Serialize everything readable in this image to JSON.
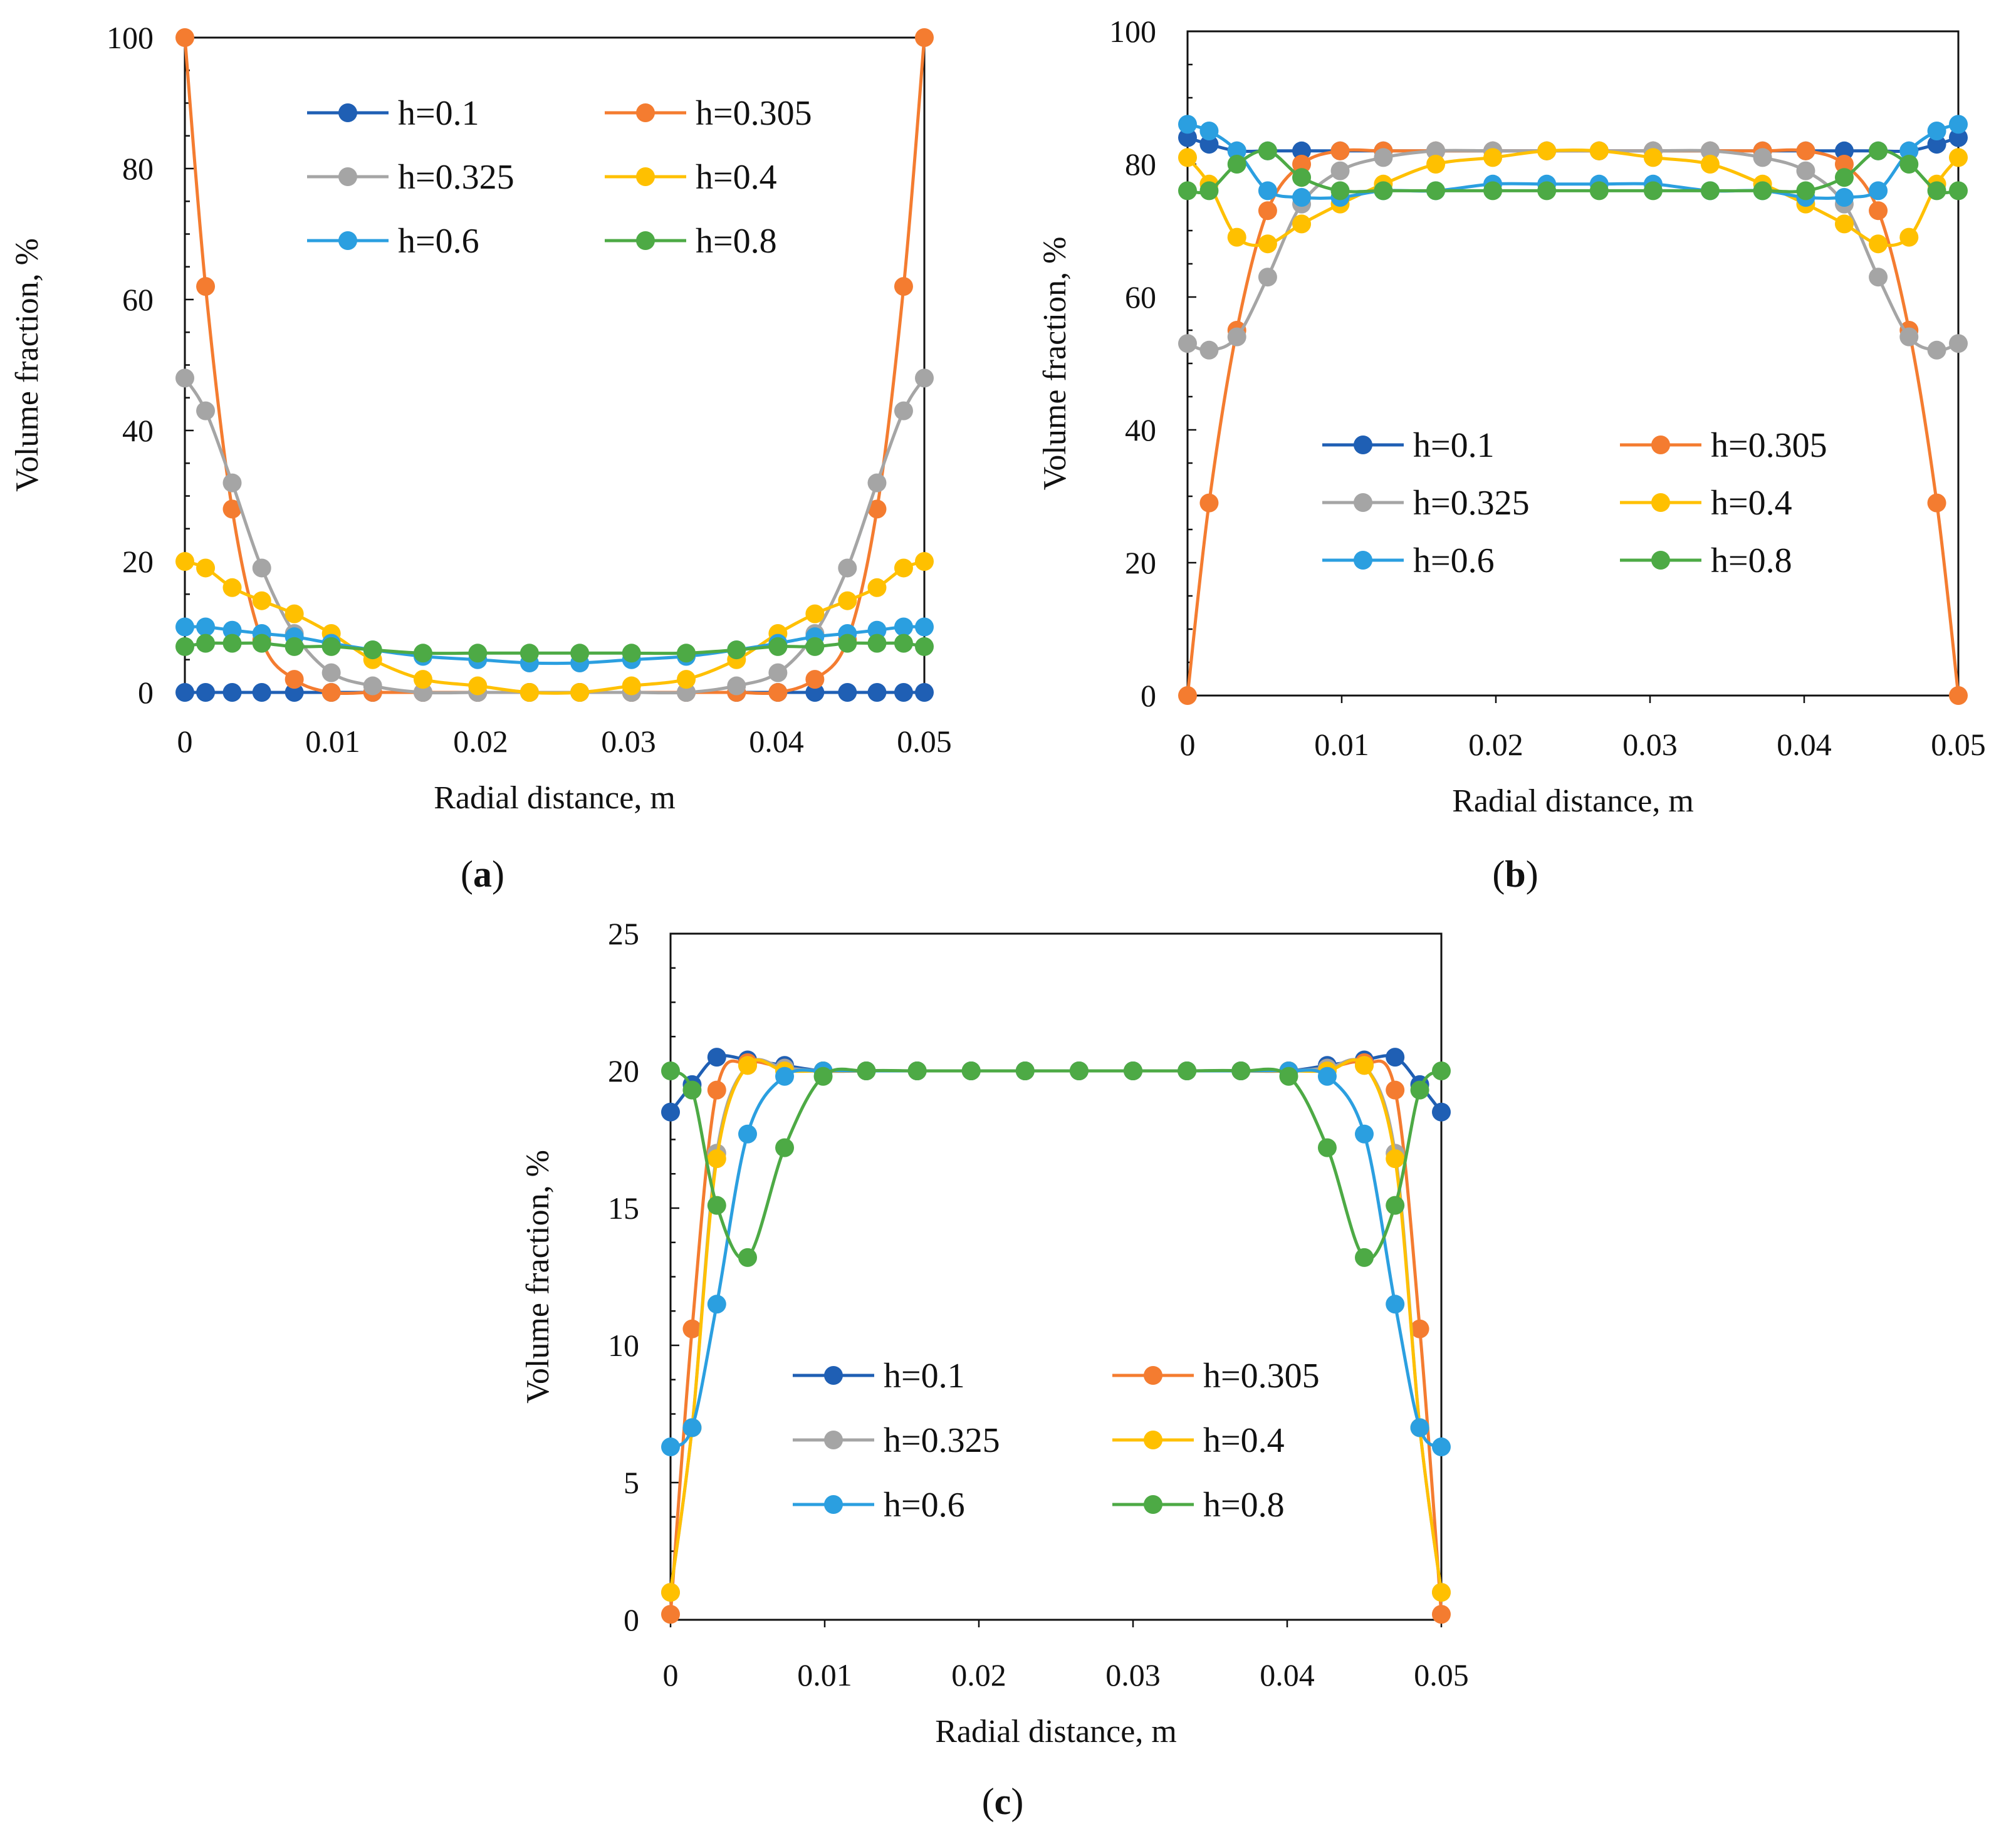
{
  "figure": {
    "panel_labels": [
      "(a)",
      "(b)",
      "(c)"
    ]
  },
  "chart_data": [
    {
      "type": "line",
      "panel": "(a)",
      "xlabel": "Radial distance, m",
      "ylabel": "Volume fraction,  %",
      "xlim": [
        0,
        0.05
      ],
      "ylim": [
        0,
        100
      ],
      "xticks": [
        "0",
        "0.01",
        "0.02",
        "0.03",
        "0.04",
        "0.05"
      ],
      "yticks": [
        "0",
        "20",
        "40",
        "60",
        "80",
        "100"
      ],
      "legend_location": "upper-center",
      "series": [
        {
          "name": "h=0.1",
          "color": "#1f5fb4",
          "x": [
            0,
            0.0014,
            0.0032,
            0.0052,
            0.0074,
            0.0099,
            0.0127,
            0.0161,
            0.0198,
            0.0233,
            0.0267,
            0.0302,
            0.0339,
            0.0373,
            0.0401,
            0.0426,
            0.0448,
            0.0468,
            0.0486,
            0.05
          ],
          "y": [
            0,
            0,
            0,
            0,
            0,
            0,
            0,
            0,
            0,
            0,
            0,
            0,
            0,
            0,
            0,
            0,
            0,
            0,
            0,
            0
          ]
        },
        {
          "name": "h=0.305",
          "color": "#f47c30",
          "x": [
            0,
            0.0014,
            0.0032,
            0.0052,
            0.0074,
            0.0099,
            0.0127,
            0.0161,
            0.0198,
            0.0233,
            0.0267,
            0.0302,
            0.0339,
            0.0373,
            0.0401,
            0.0426,
            0.0448,
            0.0468,
            0.0486,
            0.05
          ],
          "y": [
            100,
            62,
            28,
            8,
            2,
            0,
            0,
            0,
            0,
            0,
            0,
            0,
            0,
            0,
            0,
            2,
            8,
            28,
            62,
            100
          ]
        },
        {
          "name": "h=0.325",
          "color": "#a5a5a5",
          "x": [
            0,
            0.0014,
            0.0032,
            0.0052,
            0.0074,
            0.0099,
            0.0127,
            0.0161,
            0.0198,
            0.0233,
            0.0267,
            0.0302,
            0.0339,
            0.0373,
            0.0401,
            0.0426,
            0.0448,
            0.0468,
            0.0486,
            0.05
          ],
          "y": [
            48,
            43,
            32,
            19,
            9,
            3,
            1,
            0,
            0,
            0,
            0,
            0,
            0,
            1,
            3,
            9,
            19,
            32,
            43,
            48
          ]
        },
        {
          "name": "h=0.4",
          "color": "#ffc000",
          "x": [
            0,
            0.0014,
            0.0032,
            0.0052,
            0.0074,
            0.0099,
            0.0127,
            0.0161,
            0.0198,
            0.0233,
            0.0267,
            0.0302,
            0.0339,
            0.0373,
            0.0401,
            0.0426,
            0.0448,
            0.0468,
            0.0486,
            0.05
          ],
          "y": [
            20,
            19,
            16,
            14,
            12,
            9,
            5,
            2,
            1,
            0,
            0,
            1,
            2,
            5,
            9,
            12,
            14,
            16,
            19,
            20
          ]
        },
        {
          "name": "h=0.6",
          "color": "#2b9fe0",
          "x": [
            0,
            0.0014,
            0.0032,
            0.0052,
            0.0074,
            0.0099,
            0.0127,
            0.0161,
            0.0198,
            0.0233,
            0.0267,
            0.0302,
            0.0339,
            0.0373,
            0.0401,
            0.0426,
            0.0448,
            0.0468,
            0.0486,
            0.05
          ],
          "y": [
            10,
            10,
            9.5,
            9,
            8.5,
            7.5,
            6.5,
            5.5,
            5,
            4.5,
            4.5,
            5,
            5.5,
            6.5,
            7.5,
            8.5,
            9,
            9.5,
            10,
            10
          ]
        },
        {
          "name": "h=0.8",
          "color": "#4daa45",
          "x": [
            0,
            0.0014,
            0.0032,
            0.0052,
            0.0074,
            0.0099,
            0.0127,
            0.0161,
            0.0198,
            0.0233,
            0.0267,
            0.0302,
            0.0339,
            0.0373,
            0.0401,
            0.0426,
            0.0448,
            0.0468,
            0.0486,
            0.05
          ],
          "y": [
            7,
            7.5,
            7.5,
            7.5,
            7,
            7,
            6.5,
            6,
            6,
            6,
            6,
            6,
            6,
            6.5,
            7,
            7,
            7.5,
            7.5,
            7.5,
            7
          ]
        }
      ]
    },
    {
      "type": "line",
      "panel": "(b)",
      "xlabel": "Radial distance, m",
      "ylabel": "Volume fraction,  %",
      "xlim": [
        0,
        0.05
      ],
      "ylim": [
        0,
        100
      ],
      "xticks": [
        "0",
        "0.01",
        "0.02",
        "0.03",
        "0.04",
        "0.05"
      ],
      "yticks": [
        "0",
        "20",
        "40",
        "60",
        "80",
        "100"
      ],
      "legend_location": "center",
      "series": [
        {
          "name": "h=0.1",
          "color": "#1f5fb4",
          "x": [
            0,
            0.0014,
            0.0032,
            0.0052,
            0.0074,
            0.0099,
            0.0127,
            0.0161,
            0.0198,
            0.0233,
            0.0267,
            0.0302,
            0.0339,
            0.0373,
            0.0401,
            0.0426,
            0.0448,
            0.0468,
            0.0486,
            0.05
          ],
          "y": [
            84,
            83,
            82,
            82,
            82,
            82,
            82,
            82,
            82,
            82,
            82,
            82,
            82,
            82,
            82,
            82,
            82,
            82,
            83,
            84
          ]
        },
        {
          "name": "h=0.305",
          "color": "#f47c30",
          "x": [
            0,
            0.0014,
            0.0032,
            0.0052,
            0.0074,
            0.0099,
            0.0127,
            0.0161,
            0.0198,
            0.0233,
            0.0267,
            0.0302,
            0.0339,
            0.0373,
            0.0401,
            0.0426,
            0.0448,
            0.0468,
            0.0486,
            0.05
          ],
          "y": [
            0,
            29,
            55,
            73,
            80,
            82,
            82,
            82,
            82,
            82,
            82,
            82,
            82,
            82,
            82,
            80,
            73,
            55,
            29,
            0
          ]
        },
        {
          "name": "h=0.325",
          "color": "#a5a5a5",
          "x": [
            0,
            0.0014,
            0.0032,
            0.0052,
            0.0074,
            0.0099,
            0.0127,
            0.0161,
            0.0198,
            0.0233,
            0.0267,
            0.0302,
            0.0339,
            0.0373,
            0.0401,
            0.0426,
            0.0448,
            0.0468,
            0.0486,
            0.05
          ],
          "y": [
            53,
            52,
            54,
            63,
            74,
            79,
            81,
            82,
            82,
            82,
            82,
            82,
            82,
            81,
            79,
            74,
            63,
            54,
            52,
            53
          ]
        },
        {
          "name": "h=0.4",
          "color": "#ffc000",
          "x": [
            0,
            0.0014,
            0.0032,
            0.0052,
            0.0074,
            0.0099,
            0.0127,
            0.0161,
            0.0198,
            0.0233,
            0.0267,
            0.0302,
            0.0339,
            0.0373,
            0.0401,
            0.0426,
            0.0448,
            0.0468,
            0.0486,
            0.05
          ],
          "y": [
            81,
            77,
            69,
            68,
            71,
            74,
            77,
            80,
            81,
            82,
            82,
            81,
            80,
            77,
            74,
            71,
            68,
            69,
            77,
            81
          ]
        },
        {
          "name": "h=0.6",
          "color": "#2b9fe0",
          "x": [
            0,
            0.0014,
            0.0032,
            0.0052,
            0.0074,
            0.0099,
            0.0127,
            0.0161,
            0.0198,
            0.0233,
            0.0267,
            0.0302,
            0.0339,
            0.0373,
            0.0401,
            0.0426,
            0.0448,
            0.0468,
            0.0486,
            0.05
          ],
          "y": [
            86,
            85,
            82,
            76,
            75,
            75,
            76,
            76,
            77,
            77,
            77,
            77,
            76,
            76,
            75,
            75,
            76,
            82,
            85,
            86
          ]
        },
        {
          "name": "h=0.8",
          "color": "#4daa45",
          "x": [
            0,
            0.0014,
            0.0032,
            0.0052,
            0.0074,
            0.0099,
            0.0127,
            0.0161,
            0.0198,
            0.0233,
            0.0267,
            0.0302,
            0.0339,
            0.0373,
            0.0401,
            0.0426,
            0.0448,
            0.0468,
            0.0486,
            0.05
          ],
          "y": [
            76,
            76,
            80,
            82,
            78,
            76,
            76,
            76,
            76,
            76,
            76,
            76,
            76,
            76,
            76,
            78,
            82,
            80,
            76,
            76
          ]
        }
      ]
    },
    {
      "type": "line",
      "panel": "(c)",
      "xlabel": "Radial distance, m",
      "ylabel": "Volume fraction,  %",
      "xlim": [
        0,
        0.05
      ],
      "ylim": [
        0,
        25
      ],
      "xticks": [
        "0",
        "0.01",
        "0.02",
        "0.03",
        "0.04",
        "0.05"
      ],
      "yticks": [
        "0",
        "5",
        "10",
        "15",
        "20",
        "25"
      ],
      "legend_location": "lower-center",
      "series": [
        {
          "name": "h=0.1",
          "color": "#1f5fb4",
          "x": [
            0,
            0.0014,
            0.003,
            0.005,
            0.0074,
            0.0099,
            0.0127,
            0.016,
            0.0195,
            0.023,
            0.0265,
            0.03,
            0.0335,
            0.037,
            0.0401,
            0.0426,
            0.045,
            0.047,
            0.0486,
            0.05
          ],
          "y": [
            18.5,
            19.5,
            20.5,
            20.4,
            20.2,
            20,
            20,
            20,
            20,
            20,
            20,
            20,
            20,
            20,
            20,
            20.2,
            20.4,
            20.5,
            19.5,
            18.5
          ]
        },
        {
          "name": "h=0.305",
          "color": "#f47c30",
          "x": [
            0,
            0.0014,
            0.003,
            0.005,
            0.0074,
            0.0099,
            0.0127,
            0.016,
            0.0195,
            0.023,
            0.0265,
            0.03,
            0.0335,
            0.037,
            0.0401,
            0.0426,
            0.045,
            0.047,
            0.0486,
            0.05
          ],
          "y": [
            0.2,
            10.6,
            19.3,
            20.3,
            20.1,
            20,
            20,
            20,
            20,
            20,
            20,
            20,
            20,
            20,
            20,
            20.1,
            20.3,
            19.3,
            10.6,
            0.2
          ]
        },
        {
          "name": "h=0.325",
          "color": "#a5a5a5",
          "x": [
            0,
            0.0014,
            0.003,
            0.005,
            0.0074,
            0.0099,
            0.0127,
            0.016,
            0.0195,
            0.023,
            0.0265,
            0.03,
            0.0335,
            0.037,
            0.0401,
            0.0426,
            0.045,
            0.047,
            0.0486,
            0.05
          ],
          "y": [
            1,
            7,
            17,
            20.2,
            20.1,
            20,
            20,
            20,
            20,
            20,
            20,
            20,
            20,
            20,
            20,
            20.1,
            20.2,
            17,
            7,
            1
          ]
        },
        {
          "name": "h=0.4",
          "color": "#ffc000",
          "x": [
            0,
            0.0014,
            0.003,
            0.005,
            0.0074,
            0.0099,
            0.0127,
            0.016,
            0.0195,
            0.023,
            0.0265,
            0.03,
            0.0335,
            0.037,
            0.0401,
            0.0426,
            0.045,
            0.047,
            0.0486,
            0.05
          ],
          "y": [
            1,
            7,
            16.8,
            20.2,
            20,
            20,
            20,
            20,
            20,
            20,
            20,
            20,
            20,
            20,
            20,
            20,
            20.2,
            16.8,
            7,
            1
          ]
        },
        {
          "name": "h=0.6",
          "color": "#2b9fe0",
          "x": [
            0,
            0.0014,
            0.003,
            0.005,
            0.0074,
            0.0099,
            0.0127,
            0.016,
            0.0195,
            0.023,
            0.0265,
            0.03,
            0.0335,
            0.037,
            0.0401,
            0.0426,
            0.045,
            0.047,
            0.0486,
            0.05
          ],
          "y": [
            6.3,
            7,
            11.5,
            17.7,
            19.8,
            20,
            20,
            20,
            20,
            20,
            20,
            20,
            20,
            20,
            20,
            19.8,
            17.7,
            11.5,
            7,
            6.3
          ]
        },
        {
          "name": "h=0.8",
          "color": "#4daa45",
          "x": [
            0,
            0.0014,
            0.003,
            0.005,
            0.0074,
            0.0099,
            0.0127,
            0.016,
            0.0195,
            0.023,
            0.0265,
            0.03,
            0.0335,
            0.037,
            0.0401,
            0.0426,
            0.045,
            0.047,
            0.0486,
            0.05
          ],
          "y": [
            20,
            19.3,
            15.1,
            13.2,
            17.2,
            19.8,
            20,
            20,
            20,
            20,
            20,
            20,
            20,
            20,
            19.8,
            17.2,
            13.2,
            15.1,
            19.3,
            20
          ]
        }
      ]
    }
  ]
}
